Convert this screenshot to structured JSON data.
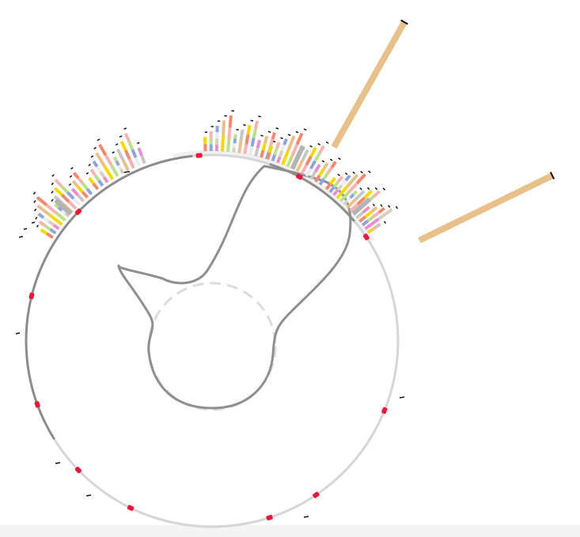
{
  "diagram": {
    "type": "circular-genome-plot",
    "colors": {
      "backbone_dark": "#8c8c8c",
      "backbone_light": "#d6d6d6",
      "arc_outline": "#f0f0f0",
      "marker": "#e8183c",
      "tick": "#111111",
      "inner_path": "#8f8f8f",
      "inner_dashed": "#dcdcdc",
      "large_bar": "#e8c08a",
      "gray_bar": "#b4b4b4"
    },
    "bar_palette": [
      "#f08a6e",
      "#8fa3e0",
      "#e98fd0",
      "#f5d800",
      "#b9e08a",
      "#d8cfc0",
      "#e8c08a",
      "#f7b3b3",
      "#ececec",
      "#c7c7c7"
    ],
    "markers_count": 11,
    "bar_clusters_count": 5,
    "large_bars_count": 2
  }
}
